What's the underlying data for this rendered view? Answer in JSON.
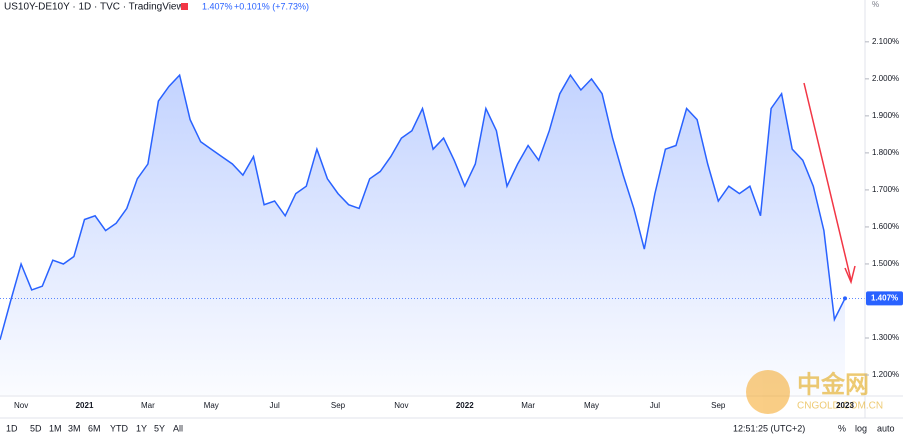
{
  "header": {
    "symbol": "US10Y-DE10Y · 1D · TVC · TradingView",
    "last": "1.407%",
    "change": "+0.101% (+7.73%)"
  },
  "chart_data": {
    "type": "area",
    "color": "#2962ff",
    "categories": [
      null,
      null,
      "Nov",
      null,
      null,
      null,
      null,
      null,
      "2021",
      null,
      null,
      null,
      null,
      null,
      "Mar",
      null,
      null,
      null,
      null,
      null,
      "May",
      null,
      null,
      null,
      null,
      null,
      "Jul",
      null,
      null,
      null,
      null,
      null,
      "Sep",
      null,
      null,
      null,
      null,
      null,
      "Nov",
      null,
      null,
      null,
      null,
      null,
      "2022",
      null,
      null,
      null,
      null,
      null,
      "Mar",
      null,
      null,
      null,
      null,
      null,
      "May",
      null,
      null,
      null,
      null,
      null,
      "Jul",
      null,
      null,
      null,
      null,
      null,
      "Sep",
      null,
      null,
      null,
      null,
      null,
      null,
      null,
      null,
      null,
      null,
      null,
      "2023"
    ],
    "values": [
      1.295,
      1.4,
      1.5,
      1.43,
      1.44,
      1.51,
      1.5,
      1.52,
      1.62,
      1.63,
      1.59,
      1.61,
      1.65,
      1.73,
      1.77,
      1.94,
      1.98,
      2.01,
      1.89,
      1.83,
      1.81,
      1.79,
      1.77,
      1.74,
      1.79,
      1.66,
      1.67,
      1.63,
      1.69,
      1.71,
      1.81,
      1.73,
      1.69,
      1.66,
      1.65,
      1.73,
      1.75,
      1.79,
      1.84,
      1.86,
      1.92,
      1.81,
      1.84,
      1.78,
      1.71,
      1.77,
      1.92,
      1.86,
      1.71,
      1.77,
      1.82,
      1.78,
      1.86,
      1.96,
      2.01,
      1.97,
      2.0,
      1.96,
      1.84,
      1.74,
      1.65,
      1.54,
      1.69,
      1.81,
      1.82,
      1.92,
      1.89,
      1.77,
      1.67,
      1.71,
      1.69,
      1.71,
      1.63,
      1.92,
      1.96,
      1.81,
      1.78,
      1.71,
      1.59,
      1.35,
      1.407
    ],
    "last_label": "1.407%",
    "y_unit": "%",
    "ylim": [
      1.146,
      2.213
    ],
    "yticks": [
      {
        "value": 1.2,
        "label": "1.200%"
      },
      {
        "value": 1.3,
        "label": "1.300%"
      },
      {
        "value": 1.5,
        "label": "1.500%"
      },
      {
        "value": 1.6,
        "label": "1.600%"
      },
      {
        "value": 1.7,
        "label": "1.700%"
      },
      {
        "value": 1.8,
        "label": "1.800%"
      },
      {
        "value": 1.9,
        "label": "1.900%"
      },
      {
        "value": 2.0,
        "label": "2.000%"
      },
      {
        "value": 2.1,
        "label": "2.100%"
      }
    ],
    "grid": false
  },
  "toolbar": {
    "ranges": [
      "1D",
      "5D",
      "1M",
      "3M",
      "6M",
      "YTD",
      "1Y",
      "5Y",
      "All"
    ],
    "time": "12:51:25 (UTC+2)",
    "options": [
      "%",
      "log",
      "auto"
    ]
  },
  "watermark": {
    "cn": "中金网",
    "en": "CNGOLD.COM.CN"
  }
}
